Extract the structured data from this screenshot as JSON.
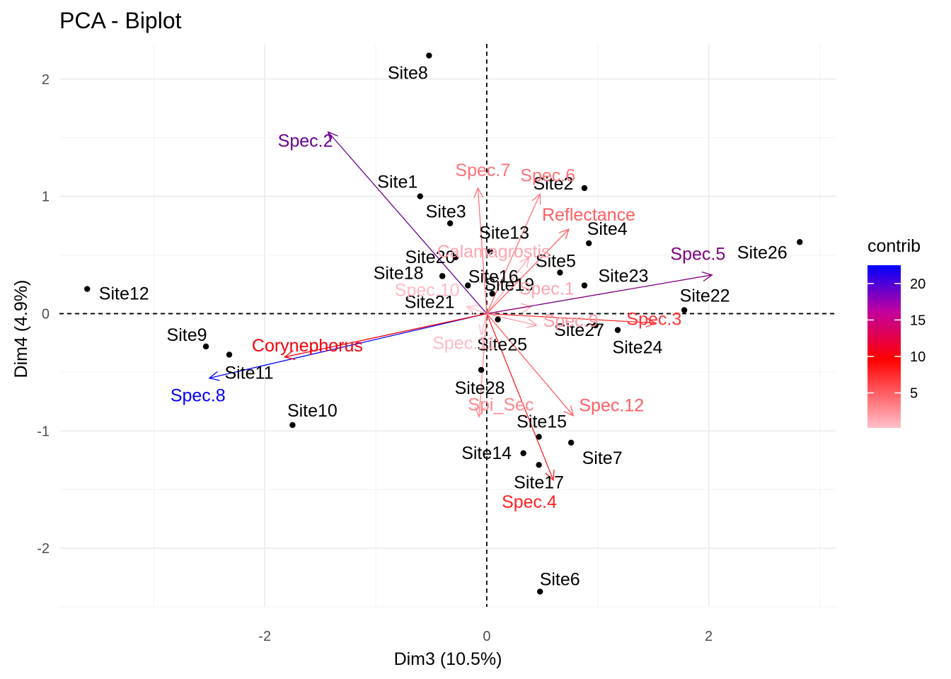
{
  "chart_data": {
    "type": "scatter",
    "title": "PCA - Biplot",
    "xlabel": "Dim3 (10.5%)",
    "ylabel": "Dim4 (4.9%)",
    "xlim": [
      -3.85,
      3.15
    ],
    "ylim": [
      -2.5,
      2.3
    ],
    "xticks": [
      -2,
      0,
      2
    ],
    "yticks": [
      -2,
      -1,
      0,
      1,
      2
    ],
    "grid": true,
    "reference_lines": {
      "x": 0,
      "y": 0,
      "style": "dashed"
    },
    "legend": {
      "title": "contrib",
      "position": "right",
      "type": "colorbar",
      "ticks": [
        5,
        10,
        15,
        20
      ],
      "range": [
        0.2,
        22.5
      ],
      "colors": [
        "#FFC0CB",
        "#FF0000",
        "#0000FF"
      ]
    },
    "individuals": [
      {
        "name": "Site1",
        "x": -0.6,
        "y": 1.0
      },
      {
        "name": "Site2",
        "x": 0.88,
        "y": 1.07
      },
      {
        "name": "Site3",
        "x": -0.33,
        "y": 0.77
      },
      {
        "name": "Site4",
        "x": 0.92,
        "y": 0.6
      },
      {
        "name": "Site5",
        "x": 0.66,
        "y": 0.35
      },
      {
        "name": "Site6",
        "x": 0.48,
        "y": -2.37
      },
      {
        "name": "Site7",
        "x": 0.76,
        "y": -1.1
      },
      {
        "name": "Site8",
        "x": -0.52,
        "y": 2.2
      },
      {
        "name": "Site9",
        "x": -2.53,
        "y": -0.28
      },
      {
        "name": "Site10",
        "x": -1.75,
        "y": -0.95
      },
      {
        "name": "Site11",
        "x": -2.32,
        "y": -0.35
      },
      {
        "name": "Site12",
        "x": -3.6,
        "y": 0.21
      },
      {
        "name": "Site13",
        "x": 0.03,
        "y": 0.53
      },
      {
        "name": "Site14",
        "x": 0.33,
        "y": -1.19
      },
      {
        "name": "Site15",
        "x": 0.47,
        "y": -1.05
      },
      {
        "name": "Site16",
        "x": -0.17,
        "y": 0.24
      },
      {
        "name": "Site17",
        "x": 0.47,
        "y": -1.29
      },
      {
        "name": "Site18",
        "x": -0.4,
        "y": 0.32
      },
      {
        "name": "Site19",
        "x": 0.05,
        "y": 0.17
      },
      {
        "name": "Site20",
        "x": -0.28,
        "y": 0.48
      },
      {
        "name": "Site21",
        "x": -0.4,
        "y": 0.32
      },
      {
        "name": "Site22",
        "x": 1.78,
        "y": 0.03
      },
      {
        "name": "Site23",
        "x": 0.88,
        "y": 0.24
      },
      {
        "name": "Site24",
        "x": 1.18,
        "y": -0.14
      },
      {
        "name": "Site25",
        "x": 0.1,
        "y": -0.05
      },
      {
        "name": "Site26",
        "x": 2.82,
        "y": 0.61
      },
      {
        "name": "Site27",
        "x": 0.98,
        "y": -0.1
      },
      {
        "name": "Site28",
        "x": -0.05,
        "y": -0.48
      }
    ],
    "variables": [
      {
        "name": "Spec.1",
        "x": 0.4,
        "y": 0.06,
        "contrib": 1.5
      },
      {
        "name": "Spec.2",
        "x": -1.43,
        "y": 1.55,
        "contrib": 17
      },
      {
        "name": "Spec.3",
        "x": 1.52,
        "y": -0.08,
        "contrib": 7
      },
      {
        "name": "Spec.4",
        "x": 0.6,
        "y": -1.42,
        "contrib": 8
      },
      {
        "name": "Spec.5",
        "x": 2.03,
        "y": 0.33,
        "contrib": 16
      },
      {
        "name": "Spec.6",
        "x": 0.48,
        "y": 1.02,
        "contrib": 4
      },
      {
        "name": "Spec.7",
        "x": -0.08,
        "y": 1.07,
        "contrib": 4
      },
      {
        "name": "Spec.8",
        "x": -2.5,
        "y": -0.55,
        "contrib": 22.5
      },
      {
        "name": "Spec.9",
        "x": 0.45,
        "y": -0.1,
        "contrib": 2
      },
      {
        "name": "Spec.10",
        "x": -0.18,
        "y": 0.06,
        "contrib": 0.5
      },
      {
        "name": "Spec.11",
        "x": -0.05,
        "y": -0.18,
        "contrib": 0.5
      },
      {
        "name": "Spec.12",
        "x": 0.78,
        "y": -0.87,
        "contrib": 5
      },
      {
        "name": "Calamagrostis",
        "x": 0.38,
        "y": 0.48,
        "contrib": 1.5
      },
      {
        "name": "Corynephorus",
        "x": -1.82,
        "y": -0.37,
        "contrib": 10
      },
      {
        "name": "Reflectance",
        "x": 0.74,
        "y": 0.72,
        "contrib": 5
      },
      {
        "name": "Spi_Sec",
        "x": -0.07,
        "y": -0.88,
        "contrib": 3
      }
    ]
  }
}
